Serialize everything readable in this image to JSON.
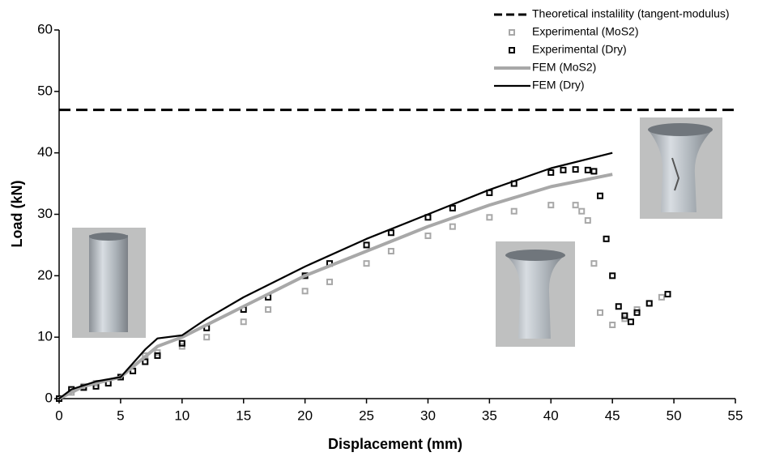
{
  "chart_data": {
    "type": "line",
    "xlabel": "Displacement (mm)",
    "ylabel": "Load (kN)",
    "xlim": [
      0,
      55
    ],
    "xticks": [
      0,
      5,
      10,
      15,
      20,
      25,
      30,
      35,
      40,
      45,
      50,
      55
    ],
    "ylim": [
      0,
      60
    ],
    "yticks": [
      0,
      10,
      20,
      30,
      40,
      50,
      60
    ],
    "grid": false,
    "legend": "upper right",
    "series": [
      {
        "name": "Theoretical instalility (tangent-modulus)",
        "color": "#000000",
        "style": "dashed",
        "x": [
          0,
          55
        ],
        "values": [
          47,
          47
        ]
      },
      {
        "name": "Experimental (MoS2)",
        "color": "#a8a8a8",
        "style": "markers",
        "x": [
          0,
          1,
          2,
          3,
          5,
          7,
          8,
          10,
          12,
          15,
          17,
          20,
          22,
          25,
          27,
          30,
          32,
          35,
          37,
          40,
          42,
          42.5,
          43,
          43.5,
          44,
          45,
          46,
          47,
          48,
          49
        ],
        "values": [
          0,
          1,
          2,
          2.5,
          3.5,
          7,
          7.5,
          8.5,
          10,
          12.5,
          14.5,
          17.5,
          19,
          22,
          24,
          26.5,
          28,
          29.5,
          30.5,
          31.5,
          31.5,
          30.5,
          29,
          22,
          14,
          12,
          13,
          14.5,
          15.5,
          16.5
        ]
      },
      {
        "name": "Experimental (Dry)",
        "color": "#000000",
        "style": "markers",
        "x": [
          0,
          1,
          2,
          3,
          4,
          5,
          6,
          7,
          8,
          10,
          12,
          15,
          17,
          20,
          22,
          25,
          27,
          30,
          32,
          35,
          37,
          40,
          41,
          42,
          43,
          43.5,
          44,
          44.5,
          45,
          45.5,
          46,
          46.5,
          47,
          48,
          49.5
        ],
        "values": [
          0,
          1.5,
          1.8,
          2,
          2.5,
          3.5,
          4.5,
          6,
          7,
          9,
          11.5,
          14.5,
          16.5,
          20,
          22,
          25,
          27,
          29.5,
          31,
          33.5,
          35,
          36.8,
          37.2,
          37.3,
          37.2,
          37,
          33,
          26,
          20,
          15,
          13.5,
          12.5,
          14,
          15.5,
          17
        ]
      },
      {
        "name": "FEM (MoS2)",
        "color": "#a8a8a8",
        "style": "line",
        "x": [
          0,
          2,
          5,
          8,
          10,
          15,
          20,
          25,
          30,
          35,
          40,
          45
        ],
        "values": [
          0,
          2,
          3.5,
          8.5,
          10,
          15,
          20,
          24,
          28,
          31.5,
          34.5,
          36.5
        ]
      },
      {
        "name": "FEM (Dry)",
        "color": "#000000",
        "style": "line",
        "x": [
          0,
          1,
          3,
          5,
          7,
          8,
          10,
          12,
          15,
          20,
          25,
          30,
          35,
          40,
          45
        ],
        "values": [
          0,
          1.5,
          2.8,
          3.5,
          8,
          9.8,
          10.3,
          13,
          16.5,
          21.5,
          26,
          30,
          34,
          37.5,
          40
        ]
      }
    ]
  }
}
